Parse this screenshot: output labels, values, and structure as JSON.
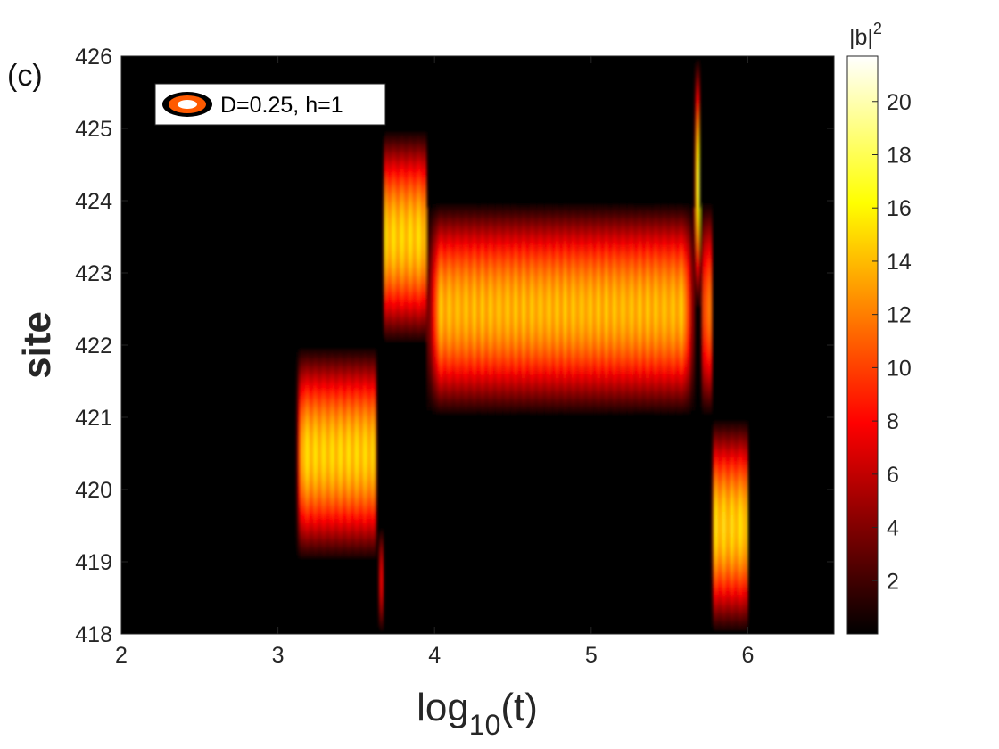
{
  "panel_label": "(c)",
  "legend_label": "D=0.25, h=1",
  "colorbar_label_base": "|b|",
  "colorbar_label_exp": "2",
  "xlabel_base": "log",
  "xlabel_sub": "10",
  "xlabel_tail": "(t)",
  "ylabel": "site",
  "colormap": "hot",
  "colors": {
    "background": "#000000",
    "legend_marker_outer": "#ff5a00",
    "legend_marker_inner": "#ffffff"
  },
  "chart_data": {
    "type": "heatmap",
    "xlabel": "log10(t)",
    "ylabel": "site",
    "xlim": [
      2,
      6.55
    ],
    "ylim": [
      418,
      426
    ],
    "xticks": [
      2,
      3,
      4,
      5,
      6
    ],
    "yticks": [
      418,
      419,
      420,
      421,
      422,
      423,
      424,
      425,
      426
    ],
    "colorbar": {
      "label": "|b|^2",
      "range": [
        0,
        21.7
      ],
      "ticks": [
        2,
        4,
        6,
        8,
        10,
        12,
        14,
        16,
        18,
        20
      ]
    },
    "legend": {
      "entries": [
        "D=0.25, h=1"
      ],
      "position": "top-left"
    },
    "blobs": [
      {
        "x_start": 3.12,
        "x_end": 3.63,
        "site_low": 419,
        "site_high": 422,
        "peak": 17
      },
      {
        "x_start": 3.64,
        "x_end": 3.67,
        "site_low": 418,
        "site_high": 419.5,
        "peak": 9
      },
      {
        "x_start": 3.67,
        "x_end": 3.95,
        "site_low": 422,
        "site_high": 425,
        "peak": 17
      },
      {
        "x_start": 3.95,
        "x_end": 5.66,
        "site_low": 421,
        "site_high": 424,
        "peak": 16
      },
      {
        "x_start": 5.66,
        "x_end": 5.69,
        "site_low": 422.5,
        "site_high": 426,
        "peak": 21
      },
      {
        "x_start": 5.7,
        "x_end": 5.77,
        "site_low": 421,
        "site_high": 424,
        "peak": 13
      },
      {
        "x_start": 5.77,
        "x_end": 6.0,
        "site_low": 418,
        "site_high": 421,
        "peak": 17
      }
    ]
  }
}
